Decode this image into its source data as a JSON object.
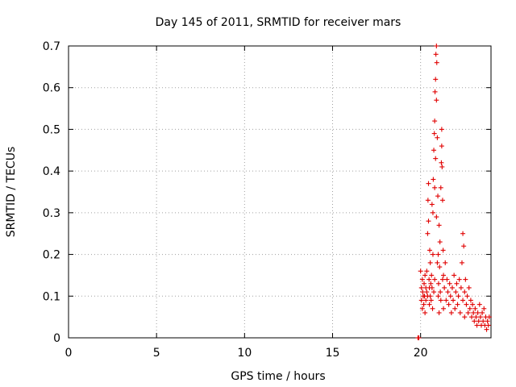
{
  "chart_data": {
    "type": "scatter",
    "title": "Day 145 of 2011, SRMTID for receiver mars",
    "xlabel": "GPS time / hours",
    "ylabel": "SRMTID / TECUs",
    "xlim": [
      0,
      24
    ],
    "ylim": [
      0,
      0.7
    ],
    "xticks": [
      0,
      5,
      10,
      15,
      20
    ],
    "yticks": [
      0,
      0.1,
      0.2,
      0.3,
      0.4,
      0.5,
      0.6,
      0.7
    ],
    "grid": true,
    "marker": "plus",
    "color": "#e00000",
    "series": [
      {
        "name": "SRMTID",
        "points": [
          [
            19.85,
            0.0
          ],
          [
            19.9,
            0.0
          ],
          [
            20.0,
            0.16
          ],
          [
            20.05,
            0.12
          ],
          [
            20.05,
            0.09
          ],
          [
            20.1,
            0.14
          ],
          [
            20.1,
            0.07
          ],
          [
            20.12,
            0.11
          ],
          [
            20.15,
            0.1
          ],
          [
            20.18,
            0.08
          ],
          [
            20.2,
            0.13
          ],
          [
            20.22,
            0.1
          ],
          [
            20.25,
            0.15
          ],
          [
            20.25,
            0.06
          ],
          [
            20.3,
            0.12
          ],
          [
            20.3,
            0.09
          ],
          [
            20.35,
            0.11
          ],
          [
            20.35,
            0.16
          ],
          [
            20.4,
            0.25
          ],
          [
            20.4,
            0.1
          ],
          [
            20.42,
            0.33
          ],
          [
            20.45,
            0.37
          ],
          [
            20.45,
            0.28
          ],
          [
            20.48,
            0.14
          ],
          [
            20.5,
            0.12
          ],
          [
            20.5,
            0.08
          ],
          [
            20.52,
            0.21
          ],
          [
            20.55,
            0.18
          ],
          [
            20.55,
            0.1
          ],
          [
            20.58,
            0.13
          ],
          [
            20.6,
            0.09
          ],
          [
            20.62,
            0.15
          ],
          [
            20.65,
            0.32
          ],
          [
            20.65,
            0.12
          ],
          [
            20.68,
            0.07
          ],
          [
            20.7,
            0.3
          ],
          [
            20.7,
            0.2
          ],
          [
            20.72,
            0.38
          ],
          [
            20.75,
            0.45
          ],
          [
            20.75,
            0.11
          ],
          [
            20.78,
            0.49
          ],
          [
            20.8,
            0.52
          ],
          [
            20.8,
            0.36
          ],
          [
            20.8,
            0.14
          ],
          [
            20.82,
            0.59
          ],
          [
            20.85,
            0.62
          ],
          [
            20.85,
            0.43
          ],
          [
            20.87,
            0.68
          ],
          [
            20.9,
            0.7
          ],
          [
            20.9,
            0.57
          ],
          [
            20.9,
            0.29
          ],
          [
            20.92,
            0.66
          ],
          [
            20.95,
            0.48
          ],
          [
            20.95,
            0.18
          ],
          [
            20.98,
            0.34
          ],
          [
            21.0,
            0.2
          ],
          [
            21.0,
            0.1
          ],
          [
            21.02,
            0.13
          ],
          [
            21.05,
            0.27
          ],
          [
            21.05,
            0.06
          ],
          [
            21.08,
            0.17
          ],
          [
            21.1,
            0.23
          ],
          [
            21.12,
            0.11
          ],
          [
            21.15,
            0.36
          ],
          [
            21.15,
            0.09
          ],
          [
            21.18,
            0.42
          ],
          [
            21.2,
            0.5
          ],
          [
            21.2,
            0.46
          ],
          [
            21.22,
            0.41
          ],
          [
            21.25,
            0.33
          ],
          [
            21.25,
            0.14
          ],
          [
            21.28,
            0.21
          ],
          [
            21.3,
            0.07
          ],
          [
            21.3,
            0.15
          ],
          [
            21.35,
            0.12
          ],
          [
            21.4,
            0.18
          ],
          [
            21.45,
            0.09
          ],
          [
            21.5,
            0.14
          ],
          [
            21.55,
            0.11
          ],
          [
            21.6,
            0.08
          ],
          [
            21.65,
            0.13
          ],
          [
            21.7,
            0.1
          ],
          [
            21.75,
            0.06
          ],
          [
            21.8,
            0.12
          ],
          [
            21.85,
            0.09
          ],
          [
            21.9,
            0.15
          ],
          [
            21.95,
            0.07
          ],
          [
            22.0,
            0.11
          ],
          [
            22.05,
            0.13
          ],
          [
            22.1,
            0.08
          ],
          [
            22.15,
            0.1
          ],
          [
            22.2,
            0.14
          ],
          [
            22.25,
            0.06
          ],
          [
            22.3,
            0.12
          ],
          [
            22.35,
            0.18
          ],
          [
            22.4,
            0.25
          ],
          [
            22.4,
            0.09
          ],
          [
            22.45,
            0.22
          ],
          [
            22.5,
            0.11
          ],
          [
            22.5,
            0.05
          ],
          [
            22.55,
            0.14
          ],
          [
            22.6,
            0.08
          ],
          [
            22.65,
            0.1
          ],
          [
            22.7,
            0.06
          ],
          [
            22.75,
            0.12
          ],
          [
            22.8,
            0.07
          ],
          [
            22.85,
            0.09
          ],
          [
            22.9,
            0.05
          ],
          [
            22.95,
            0.08
          ],
          [
            23.0,
            0.06
          ],
          [
            23.05,
            0.04
          ],
          [
            23.1,
            0.07
          ],
          [
            23.15,
            0.05
          ],
          [
            23.2,
            0.03
          ],
          [
            23.25,
            0.06
          ],
          [
            23.3,
            0.04
          ],
          [
            23.35,
            0.08
          ],
          [
            23.4,
            0.05
          ],
          [
            23.45,
            0.03
          ],
          [
            23.5,
            0.06
          ],
          [
            23.55,
            0.04
          ],
          [
            23.6,
            0.07
          ],
          [
            23.65,
            0.03
          ],
          [
            23.7,
            0.05
          ],
          [
            23.75,
            0.02
          ],
          [
            23.8,
            0.04
          ],
          [
            23.85,
            0.03
          ],
          [
            23.9,
            0.05
          ]
        ]
      }
    ]
  }
}
